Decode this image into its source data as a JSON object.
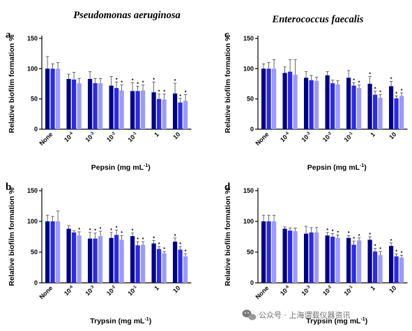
{
  "titles": {
    "left": "Pseudomonas aeruginosa",
    "right": "Enterococcus faecalis"
  },
  "watermark": {
    "text": "公众号 · 上海谓载仪器资讯"
  },
  "colors": {
    "series": [
      "#00008b",
      "#2a2ae8",
      "#9a9aff"
    ],
    "axis": "#000000",
    "watermark_icon": "#7b7b7b"
  },
  "chart_data": [
    {
      "id": "a",
      "label": "a",
      "type": "bar",
      "ylabel": "Relative biofilm formation %",
      "xlabel": "Pepsin (mg mL",
      "xlabel_sup": "-1",
      "xlabel_tail": ")",
      "ylim": [
        0,
        150
      ],
      "yticks": [
        0,
        50,
        100,
        150
      ],
      "categories": [
        "None",
        "10-4",
        "10-3",
        "10-2",
        "10-1",
        "1",
        "10"
      ],
      "category_labels": [
        {
          "base": "None",
          "sup": ""
        },
        {
          "base": "10",
          "sup": "-4"
        },
        {
          "base": "10",
          "sup": "-3"
        },
        {
          "base": "10",
          "sup": "-2"
        },
        {
          "base": "10",
          "sup": "-1"
        },
        {
          "base": "1",
          "sup": ""
        },
        {
          "base": "10",
          "sup": ""
        }
      ],
      "series": [
        {
          "values": [
            100,
            83,
            83,
            72,
            63,
            61,
            59
          ],
          "errors": [
            20,
            8,
            12,
            15,
            14,
            17,
            17
          ],
          "stars": [
            false,
            false,
            false,
            false,
            true,
            true,
            true
          ]
        },
        {
          "values": [
            100,
            82,
            76,
            68,
            63,
            50,
            44
          ],
          "errors": [
            8,
            12,
            8,
            10,
            8,
            8,
            7
          ],
          "stars": [
            false,
            false,
            false,
            true,
            true,
            true,
            true
          ]
        },
        {
          "values": [
            100,
            76,
            76,
            64,
            64,
            49,
            47
          ],
          "errors": [
            10,
            8,
            8,
            9,
            9,
            9,
            10
          ],
          "stars": [
            false,
            false,
            false,
            true,
            true,
            true,
            true
          ]
        }
      ]
    },
    {
      "id": "b",
      "label": "b",
      "type": "bar",
      "ylabel": "Relative biofilm formation %",
      "xlabel": "Trypsin (mg mL",
      "xlabel_sup": "-1",
      "xlabel_tail": ")",
      "ylim": [
        0,
        150
      ],
      "yticks": [
        0,
        50,
        100,
        150
      ],
      "categories": [
        "None",
        "10-4",
        "10-3",
        "10-2",
        "10-1",
        "1",
        "10"
      ],
      "category_labels": [
        {
          "base": "None",
          "sup": ""
        },
        {
          "base": "10",
          "sup": "-4"
        },
        {
          "base": "10",
          "sup": "-3"
        },
        {
          "base": "10",
          "sup": "-2"
        },
        {
          "base": "10",
          "sup": "-1"
        },
        {
          "base": "1",
          "sup": ""
        },
        {
          "base": "10",
          "sup": ""
        }
      ],
      "series": [
        {
          "values": [
            100,
            88,
            72,
            73,
            76,
            64,
            67
          ],
          "errors": [
            10,
            5,
            10,
            9,
            5,
            5,
            6
          ],
          "stars": [
            false,
            false,
            true,
            true,
            true,
            true,
            true
          ]
        },
        {
          "values": [
            100,
            82,
            72,
            78,
            61,
            55,
            54
          ],
          "errors": [
            8,
            3,
            9,
            8,
            6,
            4,
            5
          ],
          "stars": [
            false,
            false,
            true,
            true,
            true,
            true,
            true
          ]
        },
        {
          "values": [
            100,
            77,
            76,
            70,
            62,
            48,
            43
          ],
          "errors": [
            17,
            6,
            8,
            7,
            5,
            3,
            4
          ],
          "stars": [
            false,
            true,
            true,
            true,
            true,
            true,
            true
          ]
        }
      ]
    },
    {
      "id": "c",
      "label": "c",
      "type": "bar",
      "ylabel": "Relative biofilm formation %",
      "xlabel": "Pepsin (mg mL",
      "xlabel_sup": "-1",
      "xlabel_tail": ")",
      "ylim": [
        0,
        150
      ],
      "yticks": [
        0,
        50,
        100,
        150
      ],
      "categories": [
        "None",
        "10-4",
        "10-3",
        "10-2",
        "10-1",
        "1",
        "10"
      ],
      "category_labels": [
        {
          "base": "None",
          "sup": ""
        },
        {
          "base": "10",
          "sup": "-4"
        },
        {
          "base": "10",
          "sup": "-3"
        },
        {
          "base": "10",
          "sup": "-2"
        },
        {
          "base": "10",
          "sup": "-1"
        },
        {
          "base": "1",
          "sup": ""
        },
        {
          "base": "10",
          "sup": ""
        }
      ],
      "series": [
        {
          "values": [
            100,
            93,
            85,
            89,
            85,
            75,
            71
          ],
          "errors": [
            8,
            10,
            10,
            6,
            12,
            12,
            8
          ],
          "stars": [
            false,
            false,
            false,
            false,
            false,
            true,
            true
          ]
        },
        {
          "values": [
            100,
            95,
            81,
            76,
            72,
            57,
            51
          ],
          "errors": [
            10,
            20,
            8,
            5,
            5,
            6,
            4
          ],
          "stars": [
            false,
            false,
            false,
            false,
            true,
            true,
            true
          ]
        },
        {
          "values": [
            100,
            90,
            80,
            74,
            68,
            52,
            55
          ],
          "errors": [
            15,
            25,
            6,
            6,
            5,
            5,
            5
          ],
          "stars": [
            false,
            false,
            false,
            false,
            true,
            true,
            true
          ]
        }
      ]
    },
    {
      "id": "d",
      "label": "d",
      "type": "bar",
      "ylabel": "Relative biofilm formation %",
      "xlabel": "Trypsin (mg mL",
      "xlabel_sup": "-1",
      "xlabel_tail": ")",
      "ylim": [
        0,
        150
      ],
      "yticks": [
        0,
        50,
        100,
        150
      ],
      "categories": [
        "None",
        "10-4",
        "10-3",
        "10-2",
        "10-1",
        "1",
        "10"
      ],
      "category_labels": [
        {
          "base": "None",
          "sup": ""
        },
        {
          "base": "10",
          "sup": "-4"
        },
        {
          "base": "10",
          "sup": "-3"
        },
        {
          "base": "10",
          "sup": "-2"
        },
        {
          "base": "10",
          "sup": "-1"
        },
        {
          "base": "1",
          "sup": ""
        },
        {
          "base": "10",
          "sup": ""
        }
      ],
      "series": [
        {
          "values": [
            100,
            88,
            80,
            77,
            73,
            70,
            60
          ],
          "errors": [
            10,
            3,
            12,
            5,
            4,
            5,
            5
          ],
          "stars": [
            false,
            false,
            false,
            true,
            true,
            true,
            true
          ]
        },
        {
          "values": [
            100,
            85,
            82,
            75,
            62,
            51,
            43
          ],
          "errors": [
            10,
            4,
            8,
            5,
            6,
            5,
            4
          ],
          "stars": [
            false,
            false,
            false,
            true,
            true,
            true,
            true
          ]
        },
        {
          "values": [
            100,
            84,
            82,
            73,
            69,
            45,
            41
          ],
          "errors": [
            10,
            5,
            8,
            5,
            4,
            6,
            4
          ],
          "stars": [
            false,
            false,
            false,
            true,
            true,
            true,
            true
          ]
        }
      ]
    }
  ]
}
